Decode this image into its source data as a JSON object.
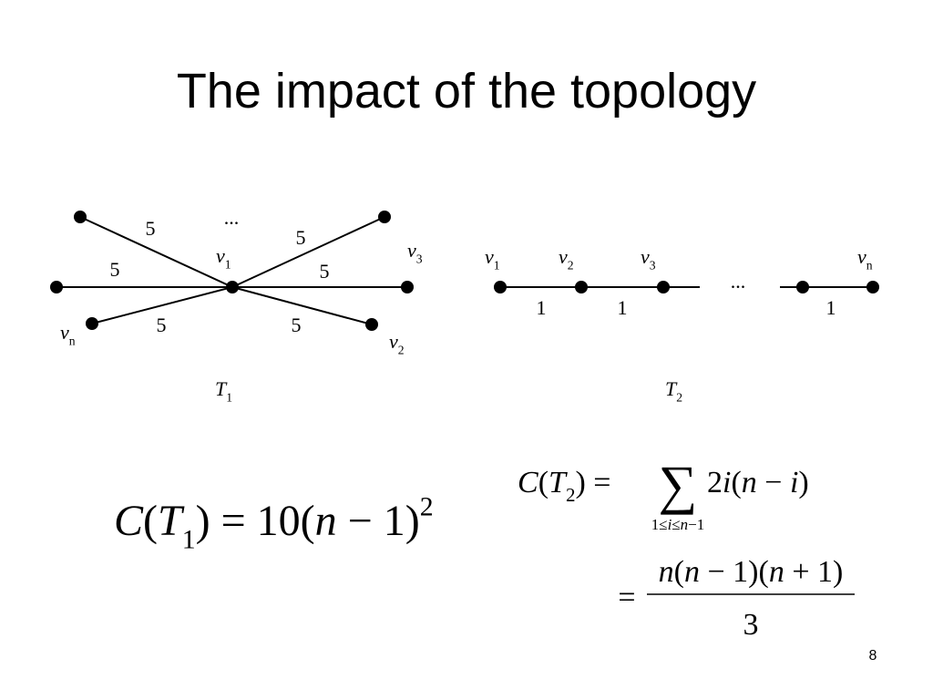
{
  "title": "The impact of the topology",
  "page_number": "8",
  "t1": {
    "name": [
      {
        "text": "T",
        "style": "italic"
      },
      {
        "text": "1",
        "style": "sub"
      }
    ],
    "center_label": [
      {
        "text": "v",
        "style": "italic"
      },
      {
        "text": "1",
        "style": "sub"
      }
    ],
    "ellipsis": "...",
    "node_labels": [
      [
        {
          "text": "v",
          "style": "italic"
        },
        {
          "text": "3",
          "style": "sub"
        }
      ],
      [
        {
          "text": "v",
          "style": "italic"
        },
        {
          "text": "2",
          "style": "sub"
        }
      ],
      [
        {
          "text": "v",
          "style": "italic"
        },
        {
          "text": "n",
          "style": "sub"
        }
      ]
    ],
    "edge_weights": [
      5,
      5,
      5,
      5,
      5,
      5
    ]
  },
  "t2": {
    "name": [
      {
        "text": "T",
        "style": "italic"
      },
      {
        "text": "2",
        "style": "sub"
      }
    ],
    "node_labels": [
      [
        {
          "text": "v",
          "style": "italic"
        },
        {
          "text": "1",
          "style": "sub"
        }
      ],
      [
        {
          "text": "v",
          "style": "italic"
        },
        {
          "text": "2",
          "style": "sub"
        }
      ],
      [
        {
          "text": "v",
          "style": "italic"
        },
        {
          "text": "3",
          "style": "sub"
        }
      ],
      [
        {
          "text": "v",
          "style": "italic"
        },
        {
          "text": "n",
          "style": "sub"
        }
      ]
    ],
    "ellipsis": "...",
    "edge_weights": [
      1,
      1,
      1
    ]
  },
  "formula_t1": [
    {
      "text": "C",
      "style": "italic"
    },
    {
      "text": "(",
      "style": "normal"
    },
    {
      "text": "T",
      "style": "italic"
    },
    {
      "text": "1",
      "style": "sub"
    },
    {
      "text": ") = 10(",
      "style": "normal"
    },
    {
      "text": "n",
      "style": "italic"
    },
    {
      "text": " − 1)",
      "style": "normal"
    },
    {
      "text": "2",
      "style": "sup"
    }
  ],
  "formula_t2": {
    "lhs": [
      {
        "text": "C",
        "style": "italic"
      },
      {
        "text": "(",
        "style": "normal"
      },
      {
        "text": "T",
        "style": "italic"
      },
      {
        "text": "2",
        "style": "sub"
      },
      {
        "text": ") =",
        "style": "normal"
      }
    ],
    "sum_sign": "∑",
    "summand": [
      {
        "text": "2",
        "style": "normal"
      },
      {
        "text": "i",
        "style": "italic"
      },
      {
        "text": "(",
        "style": "normal"
      },
      {
        "text": "n",
        "style": "italic"
      },
      {
        "text": " − ",
        "style": "normal"
      },
      {
        "text": "i",
        "style": "italic"
      },
      {
        "text": ")",
        "style": "normal"
      }
    ],
    "sum_range": [
      {
        "text": "1≤",
        "style": "normal"
      },
      {
        "text": "i",
        "style": "italic"
      },
      {
        "text": "≤",
        "style": "normal"
      },
      {
        "text": "n",
        "style": "italic"
      },
      {
        "text": "−1",
        "style": "normal"
      }
    ],
    "equals": "=",
    "numerator": [
      {
        "text": "n",
        "style": "italic"
      },
      {
        "text": "(",
        "style": "normal"
      },
      {
        "text": "n",
        "style": "italic"
      },
      {
        "text": " − 1)(",
        "style": "normal"
      },
      {
        "text": "n",
        "style": "italic"
      },
      {
        "text": " + 1)",
        "style": "normal"
      }
    ],
    "denominator": "3"
  }
}
